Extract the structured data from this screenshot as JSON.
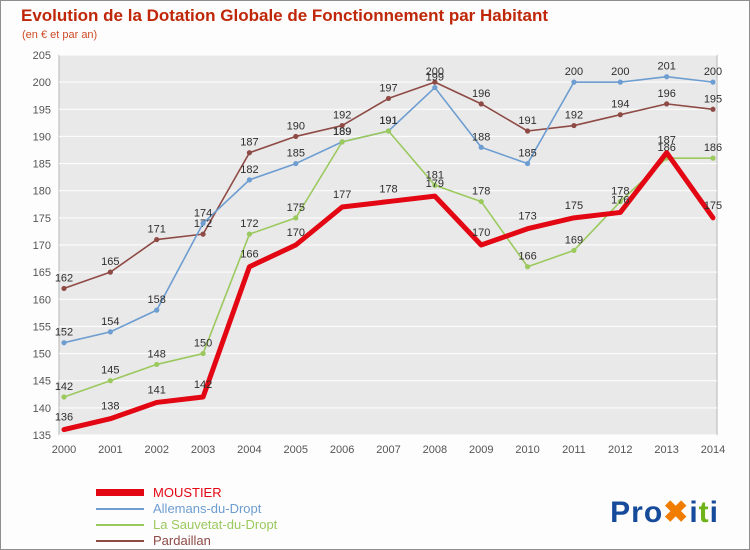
{
  "chart_data": {
    "type": "line",
    "title": "Evolution de la Dotation Globale de Fonctionnement par Habitant",
    "subtitle": "(en € et par an)",
    "categories": [
      "2000",
      "2001",
      "2002",
      "2003",
      "2004",
      "2005",
      "2006",
      "2007",
      "2008",
      "2009",
      "2010",
      "2011",
      "2012",
      "2013",
      "2014"
    ],
    "ylim": [
      135,
      205
    ],
    "ytick_step": 5,
    "grid": true,
    "legend_position": "bottom-left",
    "plot_bg_color": "#e9e9e9",
    "series": [
      {
        "name": "MOUSTIER",
        "color": "#e30613",
        "width": 5,
        "values": [
          136,
          138,
          141,
          142,
          166,
          170,
          177,
          178,
          179,
          170,
          173,
          175,
          176,
          187,
          175
        ]
      },
      {
        "name": "Allemans-du-Dropt",
        "color": "#6d9dd1",
        "width": 1.6,
        "values": [
          152,
          154,
          158,
          174,
          182,
          185,
          189,
          191,
          199,
          188,
          185,
          200,
          200,
          201,
          200
        ]
      },
      {
        "name": "La Sauvetat-du-Dropt",
        "color": "#9bc95e",
        "width": 1.6,
        "values": [
          142,
          145,
          148,
          150,
          172,
          175,
          189,
          191,
          181,
          178,
          166,
          169,
          178,
          186,
          186
        ]
      },
      {
        "name": "Pardaillan",
        "color": "#8e4a45",
        "width": 1.6,
        "values": [
          162,
          165,
          171,
          172,
          187,
          190,
          192,
          197,
          200,
          196,
          191,
          192,
          194,
          196,
          195
        ]
      }
    ]
  },
  "logo": {
    "parts": [
      {
        "text": "Pro",
        "color": "#164a9a"
      },
      {
        "text": "✖",
        "color": "#f07c00"
      },
      {
        "text": "i",
        "color": "#164a9a"
      },
      {
        "text": "t",
        "color": "#6fb31b"
      },
      {
        "text": "i",
        "color": "#164a9a"
      }
    ]
  }
}
